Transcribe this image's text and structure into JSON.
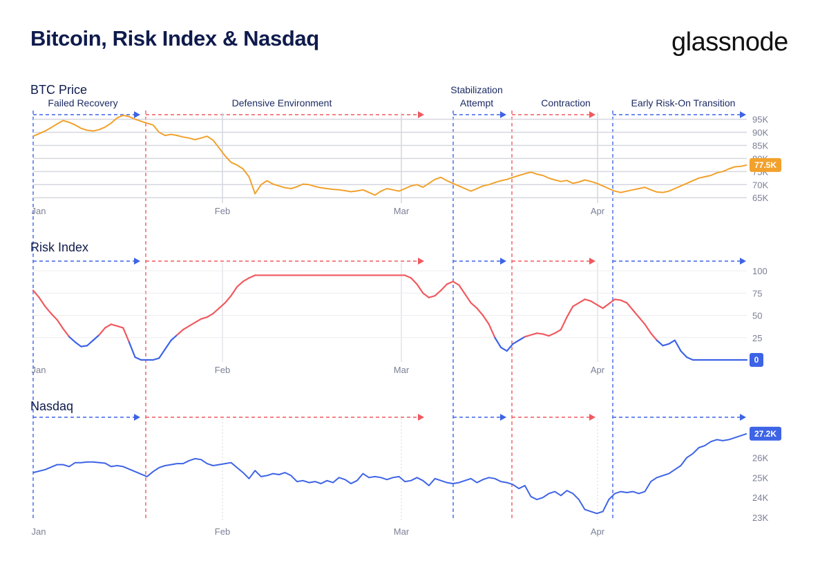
{
  "header": {
    "title": "Bitcoin, Risk Index & Nasdaq",
    "brand": "glassnode"
  },
  "colors": {
    "btc": "#f2a12b",
    "risk_high": "#f0595e",
    "risk_low": "#3d63e6",
    "nasdaq": "#3d63e6",
    "phase_blue": "#3d63e6",
    "phase_red": "#f0595e",
    "title": "#0f1b4c",
    "grid": "#d4d5dd",
    "axis_text": "#7a7f94"
  },
  "phases": [
    {
      "label": "Failed Recovery",
      "color": "blue",
      "start_day": 0,
      "end_day": 19.5
    },
    {
      "label": "Defensive Environment",
      "color": "red",
      "start_day": 19.5,
      "end_day": 68.5
    },
    {
      "label": "Stabilization Attempt",
      "color": "blue",
      "start_day": 76.5,
      "end_day": 84.5
    },
    {
      "label": "Contraction",
      "color": "red",
      "start_day": 84.5,
      "end_day": 95
    },
    {
      "label": "Early Risk-On Transition",
      "color": "blue",
      "start_day": 97,
      "end_day": 119
    }
  ],
  "chart_data": [
    {
      "type": "line",
      "title": "BTC Price",
      "x_ticks": [
        "Jan",
        "Feb",
        "Mar",
        "Apr"
      ],
      "y_ticks": [
        "65K",
        "70K",
        "75K",
        "80K",
        "85K",
        "90K",
        "95K"
      ],
      "ylim": [
        64000,
        97000
      ],
      "grid": true,
      "last_value_label": "77.5K",
      "series": [
        {
          "x_days": [
            0,
            1,
            2,
            3,
            4,
            5,
            6,
            7,
            8,
            9,
            10,
            11,
            12,
            13,
            14,
            15,
            16,
            17,
            18,
            19,
            20,
            21,
            22,
            23,
            24,
            25,
            26,
            27,
            28,
            29,
            30,
            31,
            32,
            33,
            34,
            35,
            36,
            37,
            38,
            39,
            40,
            41,
            42,
            43,
            44,
            45,
            46,
            47,
            48,
            49,
            50,
            51,
            52,
            53,
            54,
            55,
            56,
            57,
            58,
            59,
            60,
            61,
            62,
            63,
            64,
            65,
            66,
            67,
            68,
            69,
            70,
            71,
            72,
            73,
            74,
            75,
            76,
            77,
            78,
            79,
            80,
            81,
            82,
            83,
            84,
            85,
            86,
            87,
            88,
            89,
            90,
            91,
            92,
            93,
            94,
            95,
            96,
            97,
            98,
            99,
            100,
            101,
            102,
            103,
            104,
            105,
            106,
            107,
            108,
            109,
            110,
            111,
            112,
            113,
            114,
            115,
            116,
            117,
            118,
            119
          ],
          "values": [
            88500,
            89500,
            90500,
            91800,
            93200,
            94500,
            93800,
            92800,
            91500,
            90800,
            90500,
            91000,
            92000,
            93500,
            95500,
            96500,
            96000,
            95000,
            94200,
            93500,
            92800,
            90000,
            88800,
            89200,
            88800,
            88200,
            87800,
            87200,
            87800,
            88500,
            87000,
            84000,
            81000,
            78500,
            77500,
            76000,
            73000,
            66500,
            70000,
            71500,
            70200,
            69500,
            68800,
            68500,
            69200,
            70200,
            70000,
            69300,
            68800,
            68500,
            68200,
            68000,
            67700,
            67300,
            67600,
            68000,
            67000,
            66000,
            67500,
            68500,
            68000,
            67500,
            68500,
            69500,
            70000,
            69000,
            70500,
            72000,
            72800,
            71500,
            70500,
            69500,
            68500,
            67500,
            68500,
            69500,
            70000,
            70800,
            71500,
            72000,
            72800,
            73500,
            74200,
            74800,
            74000,
            73500,
            72500,
            71800,
            71200,
            71600,
            70500,
            71000,
            71800,
            71200,
            70500,
            69500,
            68500,
            67500,
            67000,
            67500,
            68000,
            68500,
            69000,
            68000,
            67200,
            67000,
            67500,
            68500,
            69500,
            70500,
            71500,
            72500,
            73000,
            73500,
            74500,
            75000,
            76000,
            76800,
            77000,
            77500
          ]
        }
      ]
    },
    {
      "type": "line",
      "title": "Risk Index",
      "x_ticks": [
        "Jan",
        "Feb",
        "Mar",
        "Apr"
      ],
      "y_ticks": [
        "25",
        "50",
        "75",
        "100"
      ],
      "ylim": [
        0,
        100
      ],
      "grid": true,
      "color_rule": "red above 25, blue at or below 25",
      "last_value_label": "0",
      "series": [
        {
          "x_days": [
            0,
            1,
            2,
            3,
            4,
            5,
            6,
            7,
            8,
            9,
            10,
            11,
            12,
            13,
            14,
            15,
            16,
            17,
            18,
            19,
            20,
            21,
            22,
            23,
            24,
            25,
            26,
            27,
            28,
            29,
            30,
            31,
            32,
            33,
            34,
            35,
            36,
            37,
            38,
            39,
            40,
            41,
            42,
            43,
            44,
            45,
            46,
            47,
            48,
            49,
            50,
            51,
            52,
            53,
            54,
            55,
            56,
            57,
            58,
            59,
            60,
            61,
            62,
            63,
            64,
            65,
            66,
            67,
            68,
            69,
            70,
            71,
            72,
            73,
            74,
            75,
            76,
            77,
            78,
            79,
            80,
            81,
            82,
            83,
            84,
            85,
            86,
            87,
            88,
            89,
            90,
            91,
            92,
            93,
            94,
            95,
            96,
            97,
            98,
            99,
            100,
            101,
            102,
            103,
            104,
            105,
            106,
            107,
            108,
            109,
            110,
            111,
            112,
            113,
            114,
            115,
            116,
            117,
            118,
            119
          ],
          "values": [
            78,
            70,
            60,
            52,
            45,
            35,
            26,
            20,
            15,
            16,
            22,
            28,
            36,
            40,
            38,
            36,
            20,
            3,
            0,
            0,
            0,
            2,
            12,
            22,
            28,
            34,
            38,
            42,
            46,
            48,
            52,
            58,
            64,
            72,
            82,
            88,
            92,
            95,
            95,
            95,
            95,
            95,
            95,
            95,
            95,
            95,
            95,
            95,
            95,
            95,
            95,
            95,
            95,
            95,
            95,
            95,
            95,
            95,
            95,
            95,
            95,
            95,
            95,
            92,
            85,
            75,
            70,
            72,
            78,
            85,
            88,
            84,
            74,
            64,
            58,
            50,
            40,
            25,
            14,
            10,
            18,
            22,
            26,
            28,
            30,
            29,
            27,
            30,
            34,
            48,
            60,
            64,
            68,
            66,
            62,
            58,
            63,
            68,
            67,
            64,
            56,
            48,
            40,
            30,
            22,
            16,
            18,
            22,
            10,
            3,
            0,
            0,
            0,
            0,
            0,
            0,
            0,
            0,
            0,
            0
          ]
        }
      ]
    },
    {
      "type": "line",
      "title": "Nasdaq",
      "x_ticks": [
        "Jan",
        "Feb",
        "Mar",
        "Apr"
      ],
      "y_ticks": [
        "23K",
        "24K",
        "25K",
        "26K",
        "27.2K"
      ],
      "ylim": [
        22900,
        27400
      ],
      "grid": false,
      "last_value_label": "27.2K",
      "series": [
        {
          "x_days": [
            0,
            2,
            4,
            5,
            6,
            7,
            8,
            9,
            10,
            12,
            13,
            14,
            15,
            17,
            19,
            20,
            21,
            22,
            23,
            24,
            25,
            26,
            27,
            28,
            29,
            30,
            31,
            32,
            33,
            34,
            35,
            36,
            37,
            38,
            39,
            40,
            41,
            42,
            43,
            44,
            45,
            46,
            47,
            48,
            49,
            50,
            51,
            52,
            53,
            54,
            55,
            56,
            57,
            58,
            59,
            60,
            61,
            62,
            63,
            64,
            65,
            66,
            67,
            68,
            69,
            70,
            71,
            72,
            73,
            74,
            75,
            76,
            77,
            78,
            79,
            80,
            81,
            82,
            83,
            84,
            85,
            86,
            87,
            88,
            89,
            90,
            91,
            92,
            93,
            94,
            95,
            96,
            97,
            98,
            99,
            100,
            101,
            102,
            103,
            104,
            105,
            106,
            107,
            108,
            109,
            110,
            111,
            112,
            113,
            114,
            115,
            116,
            117,
            118,
            119
          ],
          "values": [
            25250,
            25400,
            25650,
            25650,
            25550,
            25750,
            25750,
            25780,
            25780,
            25720,
            25550,
            25600,
            25550,
            25300,
            25050,
            25300,
            25500,
            25600,
            25650,
            25700,
            25700,
            25850,
            25950,
            25900,
            25700,
            25600,
            25650,
            25700,
            25750,
            25500,
            25250,
            24950,
            25350,
            25050,
            25100,
            25200,
            25150,
            25250,
            25100,
            24800,
            24850,
            24750,
            24800,
            24700,
            24850,
            24750,
            25000,
            24900,
            24700,
            24850,
            25200,
            25000,
            25050,
            25000,
            24900,
            25000,
            25050,
            24800,
            24850,
            25000,
            24850,
            24600,
            24950,
            24850,
            24750,
            24700,
            24750,
            24850,
            24950,
            24750,
            24900,
            25000,
            24950,
            24800,
            24750,
            24650,
            24450,
            24600,
            24050,
            23900,
            24000,
            24200,
            24300,
            24100,
            24350,
            24200,
            23900,
            23400,
            23300,
            23200,
            23300,
            23900,
            24200,
            24300,
            24250,
            24300,
            24200,
            24300,
            24800,
            25000,
            25100,
            25200,
            25400,
            25600,
            26000,
            26200,
            26500,
            26600,
            26800,
            26900,
            26850,
            26900,
            27000,
            27100,
            27200
          ]
        }
      ]
    }
  ]
}
